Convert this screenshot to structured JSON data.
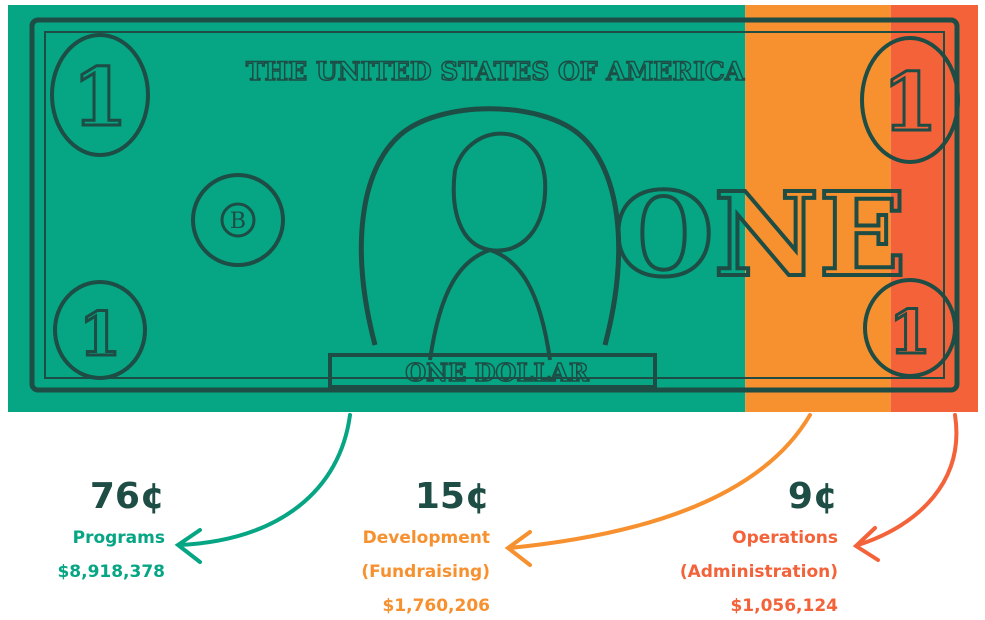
{
  "chart_data": {
    "type": "stacked-bar",
    "categories": [
      "Programs",
      "Development",
      "Operations"
    ],
    "category_notes": [
      null,
      "(Fundraising)",
      "(Administration)"
    ],
    "values": [
      76,
      15,
      9
    ],
    "value_labels": [
      "76¢",
      "15¢",
      "9¢"
    ],
    "amounts": [
      {
        "value": 8918378,
        "label": "$8,918,378"
      },
      {
        "value": 1760206,
        "label": "$1,760,206"
      },
      {
        "value": 1056124,
        "label": "$1,056,124"
      }
    ],
    "colors": [
      "#06a584",
      "#f7902f",
      "#f4623a"
    ],
    "xlim": [
      0,
      100
    ],
    "bill": {
      "header": "THE UNITED STATES OF AMERICA",
      "word": "ONE",
      "numeral": "1",
      "footer": "ONE DOLLAR",
      "seal": "B"
    }
  }
}
